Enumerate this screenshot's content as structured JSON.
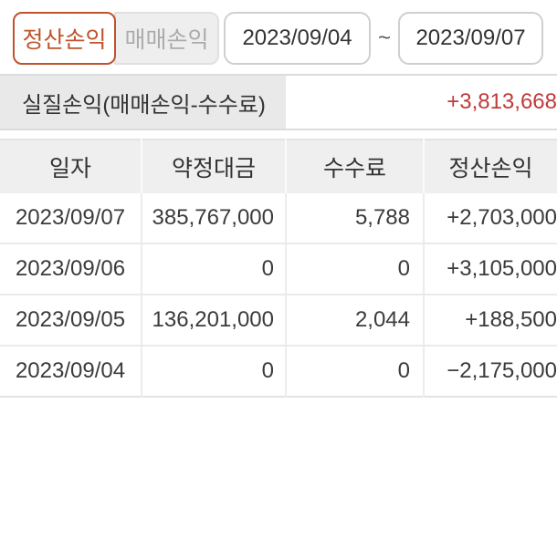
{
  "colors": {
    "accent": "#c0532c",
    "profit": "#c13a3a",
    "loss": "#2d5f9e"
  },
  "tabs": [
    {
      "label": "정산손익",
      "selected": true
    },
    {
      "label": "매매손익",
      "selected": false
    }
  ],
  "date_range": {
    "start": "2023/09/04",
    "separator": "~",
    "end": "2023/09/07"
  },
  "summary": {
    "label": "실질손익(매매손익-수수료)",
    "value": "+3,813,668"
  },
  "table": {
    "headers": [
      "일자",
      "약정대금",
      "수수료",
      "정산손익"
    ],
    "rows": [
      {
        "date": "2023/09/07",
        "amount": "385,767,000",
        "fee": "5,788",
        "pl": "+2,703,000",
        "pl_type": "profit"
      },
      {
        "date": "2023/09/06",
        "amount": "0",
        "fee": "0",
        "pl": "+3,105,000",
        "pl_type": "profit"
      },
      {
        "date": "2023/09/05",
        "amount": "136,201,000",
        "fee": "2,044",
        "pl": "+188,500",
        "pl_type": "profit"
      },
      {
        "date": "2023/09/04",
        "amount": "0",
        "fee": "0",
        "pl": "−2,175,000",
        "pl_type": "loss"
      }
    ]
  }
}
